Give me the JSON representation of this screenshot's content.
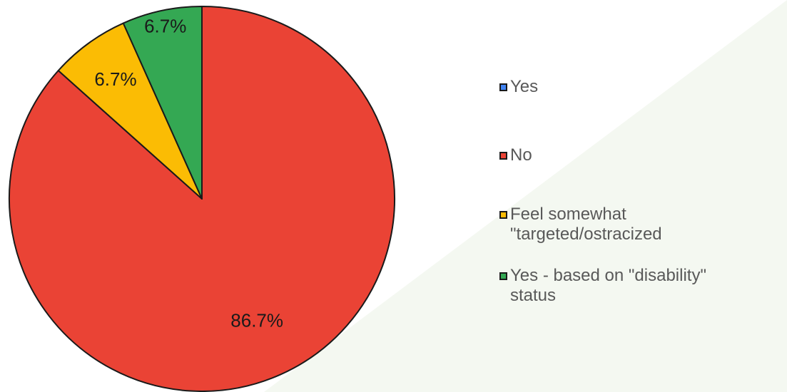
{
  "chart_data": {
    "type": "pie",
    "categories": [
      "Yes",
      "No",
      "Feel somewhat \"targeted/ostracized",
      "Yes -  based on \"disability\" status"
    ],
    "values": [
      0.0,
      86.7,
      6.7,
      6.7
    ],
    "data_labels": [
      "",
      "86.7%",
      "6.7%",
      "6.7%"
    ],
    "colors": [
      "#4285f4",
      "#ea4335",
      "#fbbc04",
      "#34a853"
    ],
    "legend_position": "right",
    "start_angle_deg": 0,
    "direction": "clockwise"
  },
  "legend": {
    "items": [
      {
        "label": "Yes",
        "color": "#4285f4"
      },
      {
        "label": "No",
        "color": "#ea4335"
      },
      {
        "label": "Feel somewhat\n\"targeted/ostracized",
        "color": "#fbbc04"
      },
      {
        "label": "Yes -  based on \"disability\"\nstatus",
        "color": "#34a853"
      }
    ]
  },
  "theme": {
    "watermark_color": "#f4f8f1",
    "slice_border_color": "#1a1a1a",
    "label_color": "#1a1a1a"
  }
}
